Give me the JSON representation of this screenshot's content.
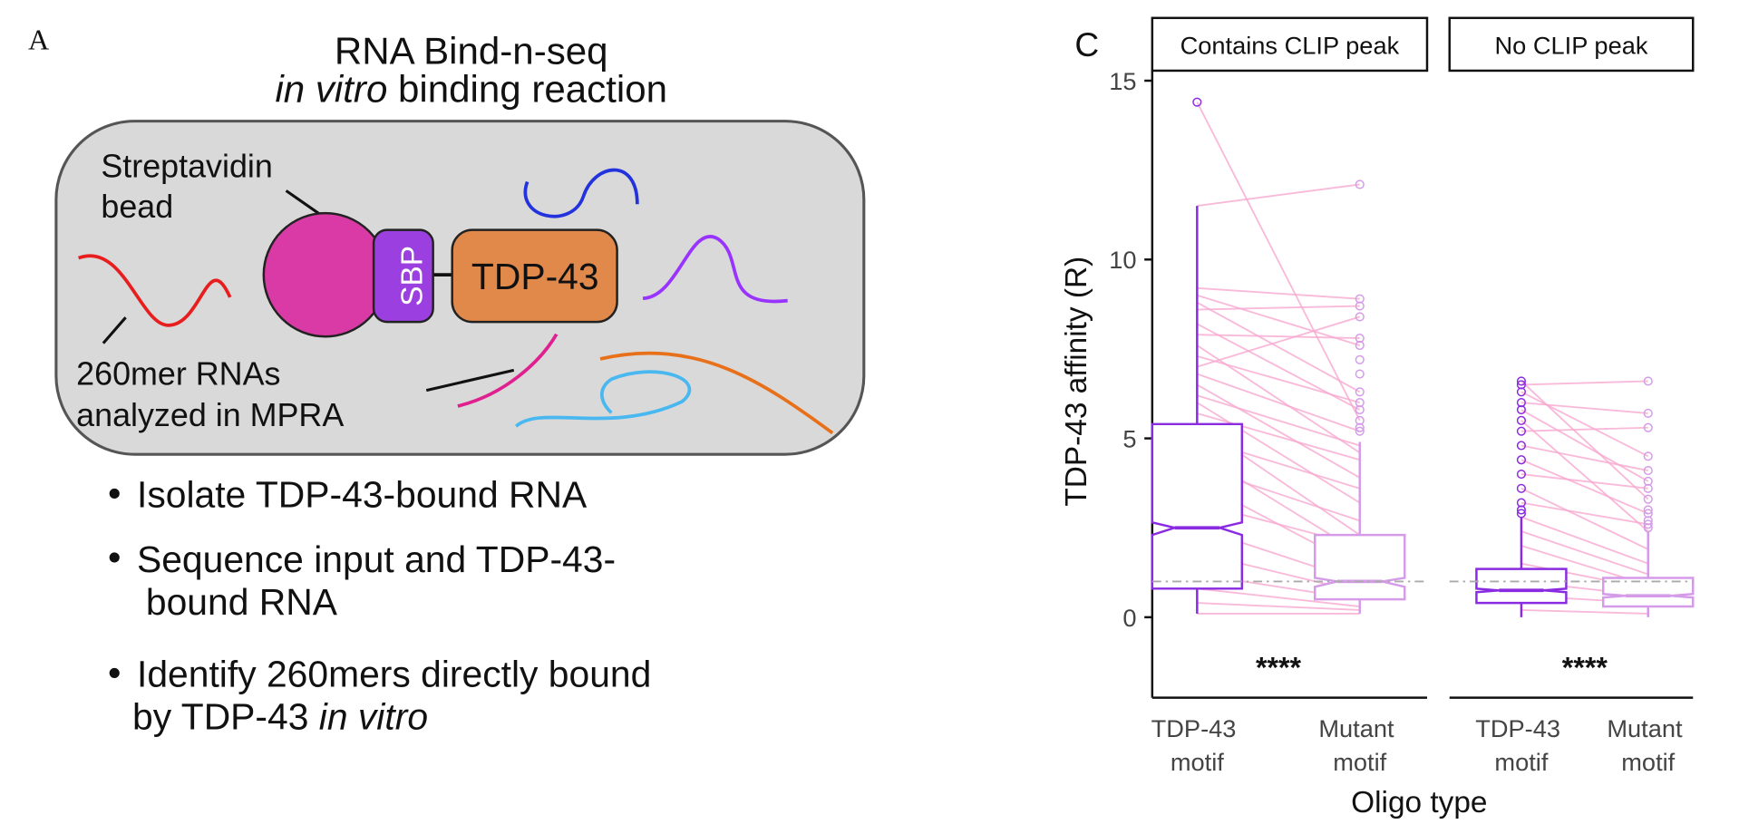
{
  "panel_a": {
    "label": "A",
    "title": [
      [
        {
          "text": "RNA Bind-n-seq"
        }
      ],
      [
        {
          "text": "in vitro",
          "italic": true
        },
        {
          "text": " binding reaction"
        }
      ]
    ],
    "bead_label": [
      "Streptavidin",
      "bead"
    ],
    "sbp": "SBP",
    "protein": "TDP-43",
    "rna_label": [
      "260mer RNAs",
      "analyzed in MPRA"
    ],
    "bullets": [
      [
        [
          {
            "text": "Isolate TDP-43-bound RNA"
          }
        ]
      ],
      [
        [
          {
            "text": "Sequence input and TDP-43-"
          }
        ],
        [
          {
            "text": "bound RNA"
          }
        ]
      ],
      [
        [
          {
            "text": "Identify 260mers directly bound"
          }
        ],
        [
          {
            "text": "by TDP-43 "
          },
          {
            "text": "in vitro",
            "italic": true
          }
        ]
      ]
    ]
  },
  "chart_data": {
    "type": "box",
    "panel_label": "C",
    "y_label": "TDP-43 affinity (R)",
    "x_label": "Oligo type",
    "categories": [
      "TDP-43 motif",
      "Mutant motif"
    ],
    "colors": [
      "#8a2be2",
      "#d59be9"
    ],
    "pair_color": "#f7a8cf",
    "ylim": [
      -2.25,
      15.28
    ],
    "yticks": [
      0,
      5,
      10,
      15
    ],
    "hline": 1,
    "facets": [
      {
        "label": "Contains CLIP peak",
        "significance": "****",
        "boxes": [
          {
            "whislo": 0.1,
            "q1": 0.8,
            "notch": [
              2.3,
              2.65
            ],
            "med": 2.5,
            "q3": 5.4,
            "whishi": 11.5,
            "outliers": [
              14.4
            ]
          },
          {
            "whislo": 0.1,
            "q1": 0.5,
            "notch": [
              0.85,
              1.1
            ],
            "med": 1.0,
            "q3": 2.3,
            "whishi": 4.9,
            "outliers": [
              12.1,
              8.9,
              8.7,
              8.4,
              7.8,
              7.6,
              7.2,
              6.8,
              6.3,
              6.0,
              5.8,
              5.5,
              5.3,
              5.2
            ]
          }
        ],
        "pairs": [
          [
            14.4,
            5.5
          ],
          [
            11.5,
            12.1
          ],
          [
            9.2,
            8.9
          ],
          [
            9.0,
            7.6
          ],
          [
            8.8,
            6.3
          ],
          [
            8.6,
            8.7
          ],
          [
            8.2,
            5.8
          ],
          [
            7.9,
            7.8
          ],
          [
            7.6,
            4.6
          ],
          [
            7.3,
            6.0
          ],
          [
            7.0,
            8.4
          ],
          [
            6.8,
            5.2
          ],
          [
            6.5,
            3.9
          ],
          [
            6.2,
            4.8
          ],
          [
            6.0,
            3.2
          ],
          [
            5.7,
            4.4
          ],
          [
            5.4,
            2.3
          ],
          [
            5.0,
            3.6
          ],
          [
            4.6,
            1.8
          ],
          [
            4.2,
            2.7
          ],
          [
            3.8,
            1.4
          ],
          [
            3.2,
            2.0
          ],
          [
            2.5,
            1.0
          ],
          [
            1.8,
            0.7
          ],
          [
            1.2,
            0.5
          ],
          [
            0.8,
            0.3
          ],
          [
            0.4,
            0.2
          ],
          [
            0.1,
            0.1
          ]
        ]
      },
      {
        "label": "No CLIP peak",
        "significance": "****",
        "boxes": [
          {
            "whislo": 0,
            "q1": 0.4,
            "notch": [
              0.7,
              0.8
            ],
            "med": 0.75,
            "q3": 1.35,
            "whishi": 2.8,
            "outliers": [
              6.6,
              6.5,
              6.3,
              6.0,
              5.8,
              5.5,
              5.2,
              4.8,
              4.4,
              4.0,
              3.6,
              3.2,
              3.0,
              2.9
            ]
          },
          {
            "whislo": 0,
            "q1": 0.3,
            "notch": [
              0.55,
              0.65
            ],
            "med": 0.6,
            "q3": 1.1,
            "whishi": 2.4,
            "outliers": [
              6.6,
              5.7,
              5.3,
              4.5,
              4.1,
              3.8,
              3.6,
              3.3,
              3.0,
              2.9,
              2.7,
              2.6,
              2.5
            ]
          }
        ],
        "pairs": [
          [
            6.6,
            3.3
          ],
          [
            6.5,
            6.6
          ],
          [
            6.3,
            4.5
          ],
          [
            6.0,
            5.7
          ],
          [
            5.8,
            3.8
          ],
          [
            5.5,
            2.4
          ],
          [
            5.2,
            5.3
          ],
          [
            4.8,
            4.1
          ],
          [
            4.4,
            2.9
          ],
          [
            4.0,
            3.6
          ],
          [
            3.6,
            1.9
          ],
          [
            3.2,
            2.6
          ],
          [
            2.8,
            1.5
          ],
          [
            2.4,
            1.2
          ],
          [
            2.0,
            0.9
          ],
          [
            1.5,
            0.8
          ],
          [
            1.0,
            0.6
          ],
          [
            0.6,
            0.4
          ],
          [
            0.2,
            0.1
          ]
        ]
      }
    ]
  }
}
